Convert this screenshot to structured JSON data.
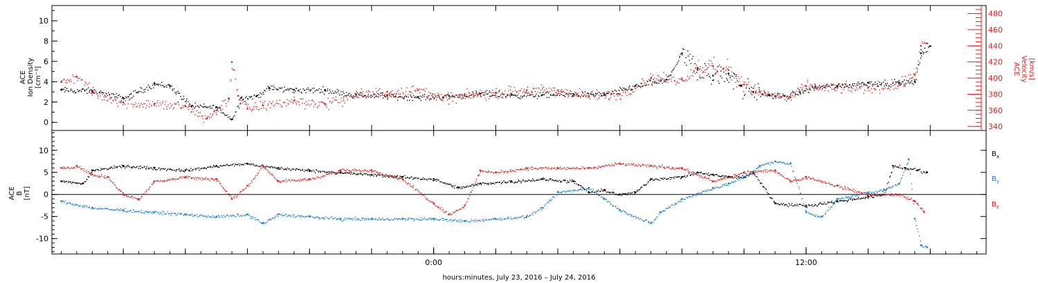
{
  "colors": {
    "black": "#000000",
    "red": "#e0201c",
    "blue": "#1a7fd4"
  },
  "chart_data": [
    {
      "type": "scatter",
      "panel": "top",
      "ylabel_lines": [
        "ACE",
        "Ion Density",
        "[cm⁻³]"
      ],
      "ylim": [
        -0.8,
        11.5
      ],
      "yticks": [
        0,
        2,
        4,
        6,
        8,
        10
      ],
      "y2label_lines": [
        "ACE",
        "Velocity",
        "[km/s]"
      ],
      "y2lim": [
        335,
        490
      ],
      "y2ticks": [
        340,
        360,
        380,
        400,
        420,
        440,
        460,
        480
      ],
      "series": [
        {
          "key": "density",
          "color": "black",
          "axis": "left",
          "x": [
            -12.0,
            -11.0,
            -10.0,
            -9.0,
            -8.5,
            -7.8,
            -7.0,
            -6.5,
            -6.2,
            -5.7,
            -5.3,
            -4.5,
            -3.5,
            -2.5,
            -1.5,
            -0.5,
            0.5,
            1.5,
            2.5,
            3.5,
            4.5,
            5.5,
            6.5,
            7.5,
            8.0,
            8.5,
            9.0,
            9.5,
            9.9,
            10.3,
            10.8,
            11.3,
            11.8,
            12.3,
            13.0,
            14.0,
            15.0,
            15.5,
            15.7,
            16.0
          ],
          "y": [
            3.2,
            3.1,
            2.4,
            3.8,
            3.6,
            1.6,
            1.5,
            0.3,
            2.4,
            2.6,
            3.4,
            3.2,
            3.2,
            2.7,
            2.6,
            2.5,
            2.6,
            2.8,
            2.7,
            2.7,
            2.8,
            2.7,
            3.6,
            4.2,
            6.8,
            5.2,
            4.6,
            4.8,
            3.6,
            3.0,
            2.7,
            2.6,
            3.0,
            3.5,
            3.6,
            3.9,
            3.9,
            4.0,
            6.8,
            7.5
          ]
        },
        {
          "key": "velocity",
          "color": "red",
          "axis": "right",
          "x": [
            -12.0,
            -11.5,
            -11.0,
            -10.0,
            -9.0,
            -8.0,
            -7.3,
            -7.0,
            -6.6,
            -6.5,
            -6.3,
            -6.0,
            -5.5,
            -4.5,
            -3.5,
            -2.5,
            -1.5,
            -0.5,
            0.3,
            1.0,
            2.0,
            3.0,
            4.0,
            5.0,
            6.0,
            7.0,
            8.0,
            8.5,
            9.0,
            9.5,
            10.0,
            10.5,
            11.0,
            11.5,
            12.0,
            13.0,
            14.0,
            15.0,
            15.5,
            15.7,
            15.9
          ],
          "y": [
            395,
            402,
            382,
            370,
            368,
            365,
            350,
            360,
            375,
            420,
            378,
            362,
            366,
            372,
            368,
            380,
            383,
            385,
            375,
            378,
            382,
            385,
            385,
            378,
            380,
            400,
            398,
            413,
            415,
            410,
            392,
            383,
            378,
            376,
            390,
            388,
            388,
            392,
            404,
            440,
            443
          ]
        }
      ]
    },
    {
      "type": "scatter",
      "panel": "bottom",
      "ylabel_lines": [
        "ACE",
        "B",
        "[nT]"
      ],
      "ylim": [
        -13.5,
        14.5
      ],
      "yticks": [
        -10,
        -5,
        0,
        5,
        10
      ],
      "zero_line": true,
      "legend": [
        "B",
        "B",
        "B"
      ],
      "legend_subscripts": [
        "x",
        "y",
        "z"
      ],
      "series": [
        {
          "key": "Bx",
          "name": "B",
          "subscript": "x",
          "color": "black",
          "x": [
            -12.0,
            -11.3,
            -11.0,
            -10.0,
            -9.0,
            -8.0,
            -7.0,
            -6.0,
            -5.0,
            -4.0,
            -3.0,
            -2.0,
            -1.0,
            0.0,
            0.8,
            1.5,
            2.5,
            3.5,
            4.5,
            5.0,
            5.5,
            6.0,
            6.5,
            7.0,
            8.0,
            8.5,
            9.0,
            9.5,
            10.0,
            10.3,
            11.0,
            12.0,
            13.0,
            14.0,
            14.5,
            14.8,
            15.2,
            15.6,
            15.9
          ],
          "y": [
            3.0,
            2.5,
            5.5,
            6.5,
            6.0,
            5.5,
            6.5,
            7.0,
            6.0,
            5.5,
            5.0,
            4.5,
            4.0,
            3.5,
            1.5,
            2.5,
            3.0,
            3.5,
            3.0,
            0.5,
            1.0,
            0.0,
            0.5,
            3.5,
            4.0,
            5.0,
            4.5,
            4.0,
            4.0,
            5.0,
            -2.0,
            -2.5,
            -1.5,
            -0.5,
            0.0,
            6.5,
            6.0,
            5.5,
            5.0
          ]
        },
        {
          "key": "By",
          "name": "B",
          "subscript": "y",
          "color": "blue",
          "x": [
            -12.0,
            -11.0,
            -10.0,
            -9.0,
            -8.0,
            -7.0,
            -6.0,
            -5.5,
            -5.0,
            -4.0,
            -3.0,
            -2.0,
            -1.0,
            0.0,
            1.0,
            2.0,
            3.0,
            3.5,
            4.0,
            5.0,
            5.5,
            6.0,
            7.0,
            7.3,
            8.0,
            9.0,
            9.5,
            10.0,
            10.5,
            11.0,
            11.5,
            12.0,
            12.5,
            13.0,
            14.0,
            14.5,
            15.0,
            15.3,
            15.5,
            15.7,
            15.9
          ],
          "y": [
            -1.5,
            -3.0,
            -3.5,
            -4.0,
            -4.5,
            -5.0,
            -4.5,
            -6.5,
            -4.5,
            -5.0,
            -5.5,
            -5.5,
            -5.5,
            -5.5,
            -6.0,
            -5.5,
            -5.0,
            -3.0,
            0.5,
            1.5,
            -1.0,
            -3.5,
            -6.5,
            -4.0,
            -1.0,
            1.5,
            2.5,
            4.0,
            6.5,
            7.5,
            7.0,
            -4.0,
            -5.0,
            -1.0,
            0.5,
            1.0,
            2.5,
            8.0,
            -5.5,
            -11.5,
            -12.0
          ]
        },
        {
          "key": "Bz",
          "name": "B",
          "subscript": "z",
          "color": "red",
          "x": [
            -12.0,
            -11.5,
            -11.0,
            -10.5,
            -10.0,
            -9.5,
            -9.0,
            -8.0,
            -7.0,
            -6.5,
            -6.0,
            -5.5,
            -5.0,
            -4.0,
            -3.0,
            -2.0,
            -1.0,
            0.0,
            0.5,
            1.0,
            1.5,
            2.0,
            3.0,
            4.0,
            5.0,
            6.0,
            7.0,
            8.0,
            9.0,
            10.0,
            11.0,
            11.5,
            12.0,
            13.0,
            14.0,
            15.0,
            15.5,
            15.8
          ],
          "y": [
            6.0,
            6.5,
            4.5,
            4.0,
            0.0,
            -1.0,
            3.0,
            4.0,
            3.5,
            -1.0,
            2.0,
            6.5,
            3.0,
            3.5,
            5.5,
            5.5,
            3.5,
            -2.0,
            -4.5,
            -2.5,
            5.5,
            5.0,
            6.0,
            6.0,
            6.0,
            7.0,
            6.5,
            6.0,
            3.0,
            5.0,
            5.5,
            3.0,
            4.0,
            2.0,
            0.0,
            0.0,
            -1.5,
            -4.0
          ]
        }
      ]
    }
  ],
  "x_axis": {
    "xlim": [
      -12.3,
      17.8
    ],
    "tick_labels": [
      {
        "x": 0,
        "label": "0:00"
      },
      {
        "x": 12,
        "label": "12:00"
      }
    ],
    "minor_ticks": [
      -10,
      -8,
      -6,
      -4,
      -2,
      2,
      4,
      6,
      8,
      10,
      14,
      16
    ],
    "xlabel": "hours:minutes, July 23, 2016 – July 24, 2016"
  }
}
